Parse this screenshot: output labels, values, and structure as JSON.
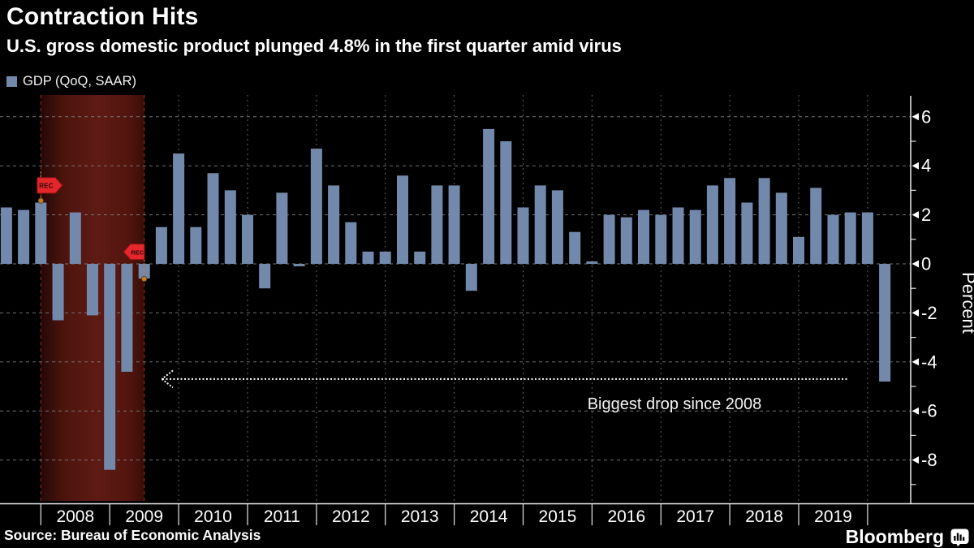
{
  "chart_data": {
    "type": "bar",
    "title": "Contraction Hits",
    "subtitle": "U.S. gross domestic product plunged 4.8% in the first quarter amid virus",
    "series_name": "GDP (QoQ, SAAR)",
    "ylabel": "Percent",
    "y_ticks": [
      6,
      4,
      2,
      0,
      -2,
      -4,
      -6,
      -8
    ],
    "ylim": [
      -9.9,
      6.9
    ],
    "grid": true,
    "legend_position": "top-left",
    "bar_color": "#7289ab",
    "x_year_labels": [
      "2008",
      "2009",
      "2010",
      "2011",
      "2012",
      "2013",
      "2014",
      "2015",
      "2016",
      "2017",
      "2018",
      "2019"
    ],
    "x": [
      "2007 Q2",
      "2007 Q3",
      "2007 Q4",
      "2008 Q1",
      "2008 Q2",
      "2008 Q3",
      "2008 Q4",
      "2009 Q1",
      "2009 Q2",
      "2009 Q3",
      "2009 Q4",
      "2010 Q1",
      "2010 Q2",
      "2010 Q3",
      "2010 Q4",
      "2011 Q1",
      "2011 Q2",
      "2011 Q3",
      "2011 Q4",
      "2012 Q1",
      "2012 Q2",
      "2012 Q3",
      "2012 Q4",
      "2013 Q1",
      "2013 Q2",
      "2013 Q3",
      "2013 Q4",
      "2014 Q1",
      "2014 Q2",
      "2014 Q3",
      "2014 Q4",
      "2015 Q1",
      "2015 Q2",
      "2015 Q3",
      "2015 Q4",
      "2016 Q1",
      "2016 Q2",
      "2016 Q3",
      "2016 Q4",
      "2017 Q1",
      "2017 Q2",
      "2017 Q3",
      "2017 Q4",
      "2018 Q1",
      "2018 Q2",
      "2018 Q3",
      "2018 Q4",
      "2019 Q1",
      "2019 Q2",
      "2019 Q3",
      "2019 Q4",
      "2020 Q1"
    ],
    "values": [
      2.3,
      2.2,
      2.5,
      -2.3,
      2.1,
      -2.1,
      -8.4,
      -4.4,
      -0.6,
      1.5,
      4.5,
      1.5,
      3.7,
      3.0,
      2.0,
      -1.0,
      2.9,
      -0.1,
      4.7,
      3.2,
      1.7,
      0.5,
      0.5,
      3.6,
      0.5,
      3.2,
      3.2,
      -1.1,
      5.5,
      5.0,
      2.3,
      3.2,
      3.0,
      1.3,
      0.1,
      2.0,
      1.9,
      2.2,
      2.0,
      2.3,
      2.2,
      3.2,
      3.5,
      2.5,
      3.5,
      2.9,
      1.1,
      3.1,
      2.0,
      2.1,
      2.1,
      -4.8
    ],
    "recession_band": {
      "start": "2007 Q4",
      "end": "2009 Q2",
      "flag_label": "REC"
    },
    "annotation": {
      "text": "Biggest drop since 2008",
      "y_value": -4.7
    }
  },
  "legend": {
    "swatch_color": "#7289ab"
  },
  "footer": {
    "source": "Source: Bureau of Economic Analysis",
    "brand": "Bloomberg"
  }
}
